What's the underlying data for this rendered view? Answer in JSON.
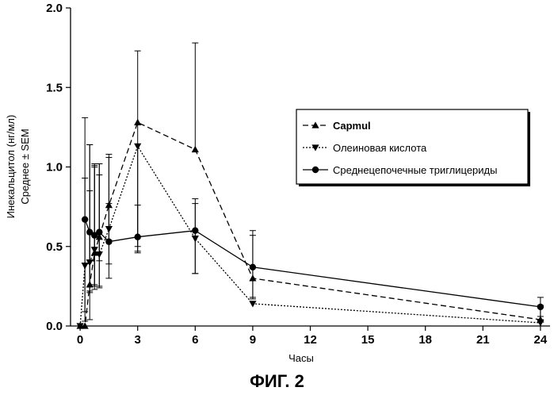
{
  "chart_data": {
    "type": "line",
    "title": "",
    "xlabel": "Часы",
    "ylabel_lines": [
      "Инекальцитол (нг/мл)",
      "Среднее ± SEM"
    ],
    "xlim": [
      -0.5,
      24.5
    ],
    "ylim": [
      0,
      2.0
    ],
    "xticks": [
      0,
      3,
      6,
      9,
      12,
      15,
      18,
      21,
      24
    ],
    "yticks": [
      0.0,
      0.5,
      1.0,
      1.5,
      2.0
    ],
    "ytick_labels": [
      "0.0",
      "0.5",
      "1.0",
      "1.5",
      "2.0"
    ],
    "grid": false,
    "legend_position": "right",
    "series": [
      {
        "name": "Capmul",
        "name_bold": true,
        "marker": "triangle-up",
        "dash": "dashed",
        "color": "#000000",
        "x": [
          0,
          0.25,
          0.5,
          0.75,
          1,
          1.5,
          3,
          6,
          9,
          24
        ],
        "y": [
          0.0,
          0.0,
          0.26,
          0.46,
          0.56,
          0.76,
          1.28,
          1.11,
          0.3,
          0.04
        ],
        "err_up": [
          0.0,
          0.0,
          0.88,
          0.56,
          0.46,
          0.32,
          0.45,
          0.67,
          0.3,
          0.09
        ],
        "err_down": [
          0.0,
          0.0,
          0.22,
          0.2,
          0.15,
          0.22,
          0.78,
          0.0,
          0.12,
          0.04
        ]
      },
      {
        "name": "Олеиновая кислота",
        "name_bold": false,
        "marker": "triangle-down",
        "dash": "dotted",
        "color": "#000000",
        "x": [
          0,
          0.25,
          0.5,
          0.75,
          1,
          1.5,
          3,
          6,
          9,
          24
        ],
        "y": [
          0.0,
          0.38,
          0.4,
          0.48,
          0.45,
          0.61,
          1.13,
          0.55,
          0.14,
          0.02
        ],
        "err_up": [
          0.0,
          0.55,
          0.45,
          0.52,
          0.5,
          0.45,
          0.0,
          0.22,
          0.0,
          0.02
        ],
        "err_down": [
          0.0,
          0.35,
          0.18,
          0.25,
          0.2,
          0.22,
          0.66,
          0.22,
          0.0,
          0.0
        ]
      },
      {
        "name": "Среднецепочечные триглицериды",
        "name_bold": false,
        "marker": "circle",
        "dash": "solid",
        "color": "#000000",
        "x": [
          0.25,
          0.5,
          0.75,
          1,
          1.5,
          3,
          6,
          9,
          24
        ],
        "y": [
          0.67,
          0.59,
          0.57,
          0.59,
          0.53,
          0.56,
          0.6,
          0.37,
          0.12
        ],
        "err_up": [
          0.64,
          0.55,
          0.44,
          0.43,
          0.24,
          0.2,
          0.2,
          0.2,
          0.06
        ],
        "err_down": [
          0.58,
          0.38,
          0.32,
          0.35,
          0.23,
          0.1,
          0.27,
          0.2,
          0.06
        ]
      }
    ]
  },
  "caption": "ФИГ. 2"
}
